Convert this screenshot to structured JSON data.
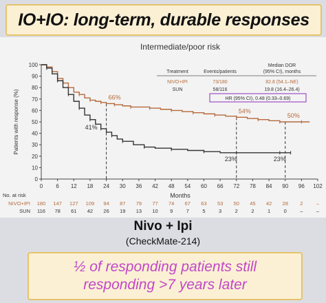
{
  "slide": {
    "title": "IO+IO: long-term, durable responses",
    "caption_main": "Nivo + Ipi",
    "caption_sub": "(CheckMate-214)",
    "bottom_line1": "½ of responding patients still",
    "bottom_line2": "responding >7 years later",
    "colors": {
      "title_bg": "#fbf0d4",
      "title_border": "#e5c36a",
      "bottom_text": "#c247c8"
    }
  },
  "chart_data": {
    "type": "line",
    "title": "Intermediate/poor risk",
    "xlabel": "Months",
    "ylabel": "Patients with response (%)",
    "xlim": [
      0,
      102
    ],
    "ylim": [
      0,
      100
    ],
    "x_ticks": [
      "0",
      "6",
      "12",
      "18",
      "24",
      "30",
      "36",
      "42",
      "48",
      "54",
      "60",
      "66",
      "72",
      "78",
      "84",
      "90",
      "96",
      "102"
    ],
    "y_ticks": [
      "0",
      "10",
      "20",
      "30",
      "40",
      "50",
      "60",
      "70",
      "80",
      "90",
      "100"
    ],
    "series": [
      {
        "name": "NIVO+IPI",
        "color": "#b5693a",
        "points": [
          [
            0,
            100
          ],
          [
            2,
            98
          ],
          [
            4,
            94
          ],
          [
            6,
            88
          ],
          [
            8,
            84
          ],
          [
            10,
            80
          ],
          [
            12,
            76
          ],
          [
            14,
            74
          ],
          [
            16,
            71
          ],
          [
            18,
            69
          ],
          [
            20,
            68
          ],
          [
            22,
            67
          ],
          [
            24,
            66
          ],
          [
            27,
            65
          ],
          [
            30,
            64
          ],
          [
            33,
            63
          ],
          [
            36,
            63
          ],
          [
            40,
            62
          ],
          [
            44,
            61
          ],
          [
            48,
            60
          ],
          [
            52,
            59
          ],
          [
            56,
            58
          ],
          [
            60,
            57
          ],
          [
            64,
            56
          ],
          [
            68,
            55
          ],
          [
            72,
            54
          ],
          [
            76,
            53
          ],
          [
            80,
            52
          ],
          [
            84,
            51
          ],
          [
            88,
            50
          ],
          [
            91,
            50
          ],
          [
            96,
            50
          ],
          [
            99,
            50
          ]
        ]
      },
      {
        "name": "SUN",
        "color": "#333333",
        "points": [
          [
            0,
            100
          ],
          [
            2,
            97
          ],
          [
            4,
            92
          ],
          [
            6,
            86
          ],
          [
            8,
            80
          ],
          [
            10,
            74
          ],
          [
            12,
            68
          ],
          [
            14,
            62
          ],
          [
            16,
            56
          ],
          [
            18,
            52
          ],
          [
            20,
            48
          ],
          [
            22,
            44
          ],
          [
            24,
            41
          ],
          [
            26,
            38
          ],
          [
            28,
            35
          ],
          [
            30,
            33
          ],
          [
            34,
            30
          ],
          [
            38,
            28
          ],
          [
            42,
            27
          ],
          [
            48,
            26
          ],
          [
            54,
            25
          ],
          [
            60,
            24
          ],
          [
            66,
            23
          ],
          [
            72,
            23
          ],
          [
            80,
            23
          ],
          [
            88,
            23
          ],
          [
            90,
            23
          ],
          [
            92,
            23
          ]
        ]
      }
    ],
    "annotations": [
      {
        "text": "66%",
        "x": 24,
        "y": 66,
        "series": "NIVO+IPI"
      },
      {
        "text": "41%",
        "x": 24,
        "y": 41,
        "series": "SUN"
      },
      {
        "text": "54%",
        "x": 72,
        "y": 54,
        "series": "NIVO+IPI"
      },
      {
        "text": "23%",
        "x": 72,
        "y": 23,
        "series": "SUN"
      },
      {
        "text": "50%",
        "x": 90,
        "y": 50,
        "series": "NIVO+IPI"
      },
      {
        "text": "23%",
        "x": 90,
        "y": 23,
        "series": "SUN"
      }
    ],
    "dashed_lines_at": [
      24,
      72,
      90
    ],
    "table": {
      "headers": [
        "Treatment",
        "Events/patients",
        "Median DOR\n(95% CI), months"
      ],
      "rows": [
        [
          "NIVO+IPI",
          "73/180",
          "82.8 (54.1–NE)"
        ],
        [
          "SUN",
          "58/116",
          "19.8 (16.4–26.4)"
        ]
      ],
      "hr": "HR (95% CI), 0.48 (0.33–0.69)"
    },
    "at_risk": {
      "label": "No. at risk",
      "rows": [
        {
          "name": "NIVO+IPI",
          "values": [
            "180",
            "147",
            "127",
            "109",
            "94",
            "87",
            "79",
            "77",
            "74",
            "67",
            "63",
            "53",
            "50",
            "45",
            "42",
            "28",
            "2",
            "–"
          ]
        },
        {
          "name": "SUN",
          "values": [
            "116",
            "78",
            "61",
            "42",
            "26",
            "19",
            "13",
            "10",
            "9",
            "7",
            "5",
            "3",
            "2",
            "2",
            "1",
            "0",
            "–",
            "–"
          ]
        }
      ]
    }
  }
}
